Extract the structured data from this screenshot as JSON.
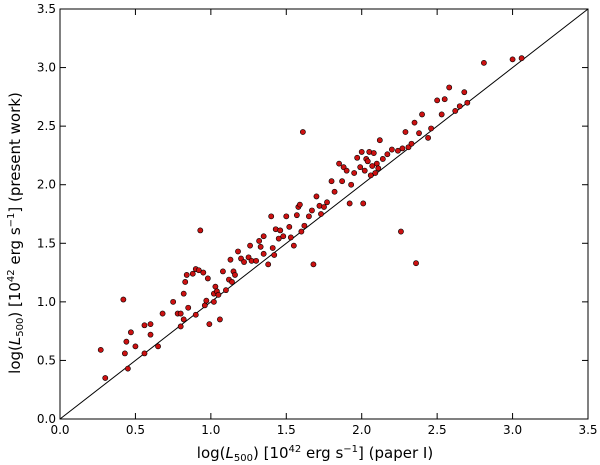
{
  "chart_data": {
    "type": "scatter",
    "title": "",
    "xlabel": "log(L500) [10^42 erg s^-1] (paper I)",
    "ylabel": "log(L500) [10^42 erg s^-1] (present work)",
    "xlim": [
      0.0,
      3.5
    ],
    "ylim": [
      0.0,
      3.5
    ],
    "x_ticks": [
      "0.0",
      "0.5",
      "1.0",
      "1.5",
      "2.0",
      "2.5",
      "3.0",
      "3.5"
    ],
    "y_ticks": [
      "0.0",
      "0.5",
      "1.0",
      "1.5",
      "2.0",
      "2.5",
      "3.0",
      "3.5"
    ],
    "grid": false,
    "reference_line": {
      "type": "identity",
      "from": [
        0.0,
        0.0
      ],
      "to": [
        3.5,
        3.5
      ]
    },
    "marker_color": "#cc1111",
    "marker_edge_color": "#000000",
    "points": [
      [
        0.27,
        0.59
      ],
      [
        0.3,
        0.35
      ],
      [
        0.42,
        1.02
      ],
      [
        0.43,
        0.56
      ],
      [
        0.44,
        0.66
      ],
      [
        0.45,
        0.43
      ],
      [
        0.47,
        0.74
      ],
      [
        0.5,
        0.62
      ],
      [
        0.56,
        0.8
      ],
      [
        0.56,
        0.56
      ],
      [
        0.6,
        0.81
      ],
      [
        0.6,
        0.72
      ],
      [
        0.65,
        0.62
      ],
      [
        0.68,
        0.9
      ],
      [
        0.75,
        1.0
      ],
      [
        0.78,
        0.9
      ],
      [
        0.8,
        0.79
      ],
      [
        0.8,
        0.9
      ],
      [
        0.82,
        0.85
      ],
      [
        0.82,
        1.07
      ],
      [
        0.83,
        1.17
      ],
      [
        0.84,
        1.23
      ],
      [
        0.85,
        0.95
      ],
      [
        0.88,
        1.24
      ],
      [
        0.9,
        0.89
      ],
      [
        0.9,
        1.28
      ],
      [
        0.92,
        1.27
      ],
      [
        0.93,
        1.61
      ],
      [
        0.95,
        1.25
      ],
      [
        0.96,
        0.97
      ],
      [
        0.97,
        1.01
      ],
      [
        0.98,
        1.2
      ],
      [
        0.99,
        0.81
      ],
      [
        1.02,
        1.0
      ],
      [
        1.02,
        1.07
      ],
      [
        1.03,
        1.13
      ],
      [
        1.04,
        1.09
      ],
      [
        1.05,
        1.06
      ],
      [
        1.06,
        0.85
      ],
      [
        1.08,
        1.26
      ],
      [
        1.1,
        1.1
      ],
      [
        1.12,
        1.19
      ],
      [
        1.13,
        1.36
      ],
      [
        1.14,
        1.17
      ],
      [
        1.15,
        1.26
      ],
      [
        1.16,
        1.23
      ],
      [
        1.18,
        1.43
      ],
      [
        1.2,
        1.37
      ],
      [
        1.22,
        1.34
      ],
      [
        1.25,
        1.38
      ],
      [
        1.26,
        1.48
      ],
      [
        1.27,
        1.35
      ],
      [
        1.3,
        1.35
      ],
      [
        1.32,
        1.52
      ],
      [
        1.33,
        1.47
      ],
      [
        1.35,
        1.56
      ],
      [
        1.35,
        1.41
      ],
      [
        1.38,
        1.32
      ],
      [
        1.4,
        1.73
      ],
      [
        1.41,
        1.46
      ],
      [
        1.42,
        1.4
      ],
      [
        1.43,
        1.62
      ],
      [
        1.45,
        1.54
      ],
      [
        1.46,
        1.61
      ],
      [
        1.48,
        1.56
      ],
      [
        1.5,
        1.73
      ],
      [
        1.52,
        1.64
      ],
      [
        1.53,
        1.55
      ],
      [
        1.55,
        1.48
      ],
      [
        1.57,
        1.74
      ],
      [
        1.58,
        1.81
      ],
      [
        1.59,
        1.83
      ],
      [
        1.6,
        1.6
      ],
      [
        1.61,
        2.45
      ],
      [
        1.62,
        1.65
      ],
      [
        1.65,
        1.73
      ],
      [
        1.67,
        1.78
      ],
      [
        1.68,
        1.32
      ],
      [
        1.7,
        1.9
      ],
      [
        1.72,
        1.82
      ],
      [
        1.73,
        1.75
      ],
      [
        1.75,
        1.81
      ],
      [
        1.77,
        1.85
      ],
      [
        1.8,
        2.03
      ],
      [
        1.82,
        1.94
      ],
      [
        1.85,
        2.18
      ],
      [
        1.87,
        2.03
      ],
      [
        1.88,
        2.15
      ],
      [
        1.9,
        2.12
      ],
      [
        1.92,
        1.84
      ],
      [
        1.93,
        2.0
      ],
      [
        1.95,
        2.1
      ],
      [
        1.97,
        2.23
      ],
      [
        1.99,
        2.15
      ],
      [
        2.0,
        2.28
      ],
      [
        2.01,
        1.84
      ],
      [
        2.02,
        2.12
      ],
      [
        2.03,
        2.22
      ],
      [
        2.04,
        2.2
      ],
      [
        2.05,
        2.28
      ],
      [
        2.06,
        2.08
      ],
      [
        2.07,
        2.16
      ],
      [
        2.08,
        2.27
      ],
      [
        2.09,
        2.1
      ],
      [
        2.1,
        2.18
      ],
      [
        2.11,
        2.14
      ],
      [
        2.12,
        2.38
      ],
      [
        2.14,
        2.22
      ],
      [
        2.17,
        2.26
      ],
      [
        2.2,
        2.3
      ],
      [
        2.24,
        2.29
      ],
      [
        2.26,
        1.6
      ],
      [
        2.27,
        2.31
      ],
      [
        2.29,
        2.45
      ],
      [
        2.31,
        2.32
      ],
      [
        2.33,
        2.35
      ],
      [
        2.35,
        2.53
      ],
      [
        2.36,
        1.33
      ],
      [
        2.38,
        2.44
      ],
      [
        2.4,
        2.6
      ],
      [
        2.44,
        2.4
      ],
      [
        2.46,
        2.48
      ],
      [
        2.5,
        2.72
      ],
      [
        2.53,
        2.6
      ],
      [
        2.55,
        2.73
      ],
      [
        2.58,
        2.83
      ],
      [
        2.62,
        2.63
      ],
      [
        2.65,
        2.67
      ],
      [
        2.68,
        2.79
      ],
      [
        2.7,
        2.7
      ],
      [
        2.81,
        3.04
      ],
      [
        3.0,
        3.07
      ],
      [
        3.06,
        3.08
      ]
    ]
  }
}
